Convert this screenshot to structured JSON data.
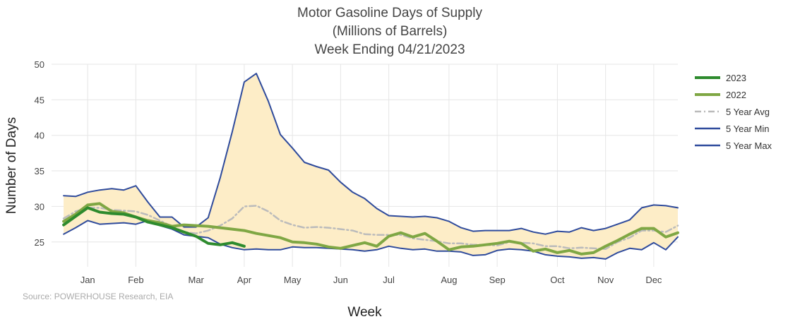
{
  "chart_data": {
    "type": "line",
    "title_lines": [
      "Motor Gasoline Days of Supply",
      "(Millions of Barrels)",
      "Week Ending 04/21/2023"
    ],
    "xlabel": "Week",
    "ylabel": "Number of Days",
    "source": "Source: POWERHOUSE Research, EIA",
    "ylim": [
      21.5,
      50
    ],
    "yticks": [
      25,
      30,
      35,
      40,
      45,
      50
    ],
    "xlim": [
      -1,
      51
    ],
    "month_ticks": [
      {
        "label": "Jan",
        "week": 2
      },
      {
        "label": "Feb",
        "week": 6
      },
      {
        "label": "Mar",
        "week": 11
      },
      {
        "label": "Apr",
        "week": 15
      },
      {
        "label": "May",
        "week": 19
      },
      {
        "label": "Jun",
        "week": 23
      },
      {
        "label": "Jul",
        "week": 27
      },
      {
        "label": "Aug",
        "week": 32
      },
      {
        "label": "Sep",
        "week": 36
      },
      {
        "label": "Oct",
        "week": 41
      },
      {
        "label": "Nov",
        "week": 45
      },
      {
        "label": "Dec",
        "week": 49
      }
    ],
    "band_fill_color": "#fdedc7",
    "series": [
      {
        "name": "5 Year Max",
        "color": "#2f4b9c",
        "style": "solid",
        "values": [
          31.5,
          31.4,
          32.0,
          32.3,
          32.5,
          32.3,
          32.9,
          30.6,
          28.5,
          28.5,
          27.1,
          27.1,
          28.4,
          34.0,
          40.5,
          47.5,
          48.7,
          44.8,
          40.1,
          38.2,
          36.2,
          35.6,
          35.1,
          33.4,
          32.0,
          31.1,
          29.7,
          28.7,
          28.6,
          28.5,
          28.6,
          28.4,
          27.9,
          27.0,
          26.5,
          26.6,
          26.6,
          26.6,
          26.9,
          26.4,
          26.1,
          26.5,
          26.4,
          27.0,
          26.6,
          26.9,
          27.5,
          28.1,
          29.8,
          30.2,
          30.1,
          29.8
        ]
      },
      {
        "name": "5 Year Min",
        "color": "#2f4b9c",
        "style": "solid",
        "values": [
          26.1,
          27.0,
          28.0,
          27.5,
          27.6,
          27.7,
          27.5,
          28.0,
          27.3,
          26.8,
          26.0,
          25.8,
          25.6,
          24.7,
          24.2,
          23.9,
          24.0,
          23.9,
          23.9,
          24.3,
          24.2,
          24.2,
          24.1,
          24.0,
          23.9,
          23.7,
          23.9,
          24.4,
          24.1,
          23.9,
          24.0,
          23.7,
          23.7,
          23.6,
          23.1,
          23.2,
          23.8,
          24.0,
          23.9,
          23.7,
          23.2,
          23.0,
          22.9,
          22.7,
          22.8,
          22.6,
          23.5,
          24.1,
          23.9,
          24.9,
          23.9,
          25.7
        ]
      },
      {
        "name": "5 Year Avg",
        "color": "#bbbbbb",
        "style": "dashdot",
        "values": [
          28.3,
          29.3,
          29.8,
          29.8,
          29.5,
          29.4,
          29.3,
          28.8,
          28.0,
          27.2,
          26.4,
          26.2,
          26.6,
          27.3,
          28.3,
          30.0,
          30.1,
          29.3,
          28.0,
          27.4,
          27.0,
          27.1,
          27.0,
          26.8,
          26.6,
          26.1,
          26.0,
          26.0,
          26.0,
          25.5,
          25.3,
          25.1,
          24.8,
          24.8,
          24.6,
          24.6,
          24.5,
          25.0,
          24.9,
          24.8,
          24.4,
          24.4,
          24.1,
          24.2,
          24.1,
          24.0,
          25.0,
          25.6,
          26.6,
          26.6,
          26.4,
          27.3
        ]
      },
      {
        "name": "2022",
        "color": "#7fa744",
        "style": "solid",
        "width": 4,
        "values": [
          27.9,
          28.9,
          30.2,
          30.4,
          29.3,
          29.1,
          28.5,
          28.0,
          27.7,
          27.2,
          27.4,
          27.3,
          27.2,
          27.0,
          26.8,
          26.6,
          26.2,
          25.9,
          25.6,
          25.0,
          24.9,
          24.7,
          24.3,
          24.1,
          24.5,
          24.9,
          24.4,
          25.8,
          26.3,
          25.7,
          26.2,
          25.1,
          23.9,
          24.3,
          24.4,
          24.6,
          24.8,
          25.1,
          24.8,
          23.7,
          24.0,
          23.5,
          23.8,
          23.3,
          23.5,
          24.4,
          25.2,
          26.1,
          26.9,
          26.9,
          25.7,
          26.3
        ]
      },
      {
        "name": "2023",
        "color": "#2e8b2e",
        "style": "solid",
        "width": 4,
        "values": [
          27.4,
          28.6,
          29.8,
          29.2,
          29.0,
          28.9,
          28.5,
          27.8,
          27.4,
          27.0,
          26.4,
          25.8,
          24.8,
          24.6,
          24.9,
          24.4
        ]
      }
    ],
    "legend": [
      "2023",
      "2022",
      "5 Year Avg",
      "5 Year Min",
      "5 Year Max"
    ],
    "legend_position": "right"
  }
}
